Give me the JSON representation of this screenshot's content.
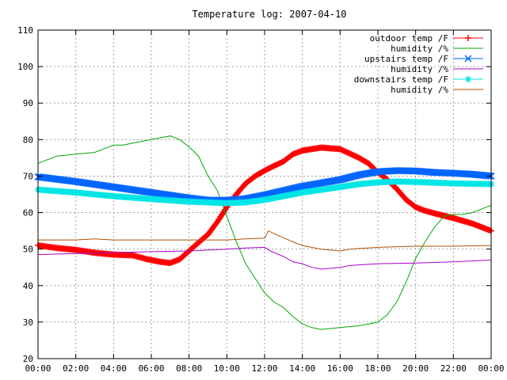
{
  "chart_data": {
    "type": "line",
    "title": "Temperature log: 2007-04-10",
    "xlabel": "",
    "ylabel": "",
    "x_ticks": [
      "00:00",
      "02:00",
      "04:00",
      "06:00",
      "08:00",
      "10:00",
      "12:00",
      "14:00",
      "16:00",
      "18:00",
      "20:00",
      "22:00",
      "00:00"
    ],
    "y_ticks": [
      20,
      30,
      40,
      50,
      60,
      70,
      80,
      90,
      100,
      110
    ],
    "xlim": [
      0,
      24
    ],
    "ylim": [
      20,
      110
    ],
    "grid": true,
    "legend_position": "top-right",
    "series": [
      {
        "name": "outdoor temp /F",
        "color": "#ff0000",
        "marker": "plus",
        "points": [
          [
            0,
            51
          ],
          [
            1,
            50.3
          ],
          [
            2,
            49.8
          ],
          [
            3,
            49
          ],
          [
            4,
            48.5
          ],
          [
            5,
            48.3
          ],
          [
            5.8,
            47.2
          ],
          [
            6.5,
            46.5
          ],
          [
            7,
            46.2
          ],
          [
            7.5,
            47.2
          ],
          [
            8,
            49.5
          ],
          [
            8.5,
            51.8
          ],
          [
            9,
            54
          ],
          [
            9.5,
            57.5
          ],
          [
            10,
            61.5
          ],
          [
            10.5,
            65
          ],
          [
            11,
            68
          ],
          [
            11.5,
            70
          ],
          [
            12,
            71.5
          ],
          [
            12.5,
            72.8
          ],
          [
            13,
            74
          ],
          [
            13.5,
            76
          ],
          [
            14,
            77
          ],
          [
            15,
            77.8
          ],
          [
            16,
            77.4
          ],
          [
            17,
            75
          ],
          [
            17.5,
            73.5
          ],
          [
            18,
            71
          ],
          [
            18.5,
            69
          ],
          [
            19,
            66.5
          ],
          [
            19.5,
            63.5
          ],
          [
            20,
            61.5
          ],
          [
            20.5,
            60.5
          ],
          [
            21,
            59.8
          ],
          [
            22,
            58.5
          ],
          [
            23,
            57
          ],
          [
            24,
            55
          ]
        ]
      },
      {
        "name": "humidity /%",
        "color": "#00aa00",
        "marker": "none",
        "points": [
          [
            0,
            73.5
          ],
          [
            1,
            75.5
          ],
          [
            2,
            76
          ],
          [
            3,
            76.5
          ],
          [
            4,
            78.5
          ],
          [
            4.5,
            78.5
          ],
          [
            5,
            79
          ],
          [
            6,
            80
          ],
          [
            7,
            81
          ],
          [
            7.5,
            80
          ],
          [
            8,
            78
          ],
          [
            8.5,
            75.5
          ],
          [
            9,
            70
          ],
          [
            9.5,
            66
          ],
          [
            10,
            59
          ],
          [
            10.5,
            52
          ],
          [
            11,
            46
          ],
          [
            11.5,
            42
          ],
          [
            12,
            38
          ],
          [
            12.5,
            35.5
          ],
          [
            13,
            34
          ],
          [
            13.5,
            31.5
          ],
          [
            14,
            29.5
          ],
          [
            14.5,
            28.5
          ],
          [
            15,
            28
          ],
          [
            16,
            28.5
          ],
          [
            17,
            29
          ],
          [
            18,
            30
          ],
          [
            18.5,
            32
          ],
          [
            19,
            35.5
          ],
          [
            19.5,
            41
          ],
          [
            20,
            47.5
          ],
          [
            20.5,
            52
          ],
          [
            21,
            56
          ],
          [
            21.5,
            59
          ],
          [
            22,
            59.5
          ],
          [
            22.5,
            59.5
          ],
          [
            23,
            60
          ],
          [
            24,
            62
          ]
        ]
      },
      {
        "name": "upstairs temp /F",
        "color": "#0066ff",
        "marker": "x",
        "points": [
          [
            0,
            69.8
          ],
          [
            2,
            68.5
          ],
          [
            4,
            67
          ],
          [
            6,
            65.5
          ],
          [
            8,
            64
          ],
          [
            9,
            63.4
          ],
          [
            10,
            63.4
          ],
          [
            11,
            63.8
          ],
          [
            12,
            64.8
          ],
          [
            13,
            66
          ],
          [
            14,
            67.2
          ],
          [
            16,
            69
          ],
          [
            17,
            70.3
          ],
          [
            18,
            71.2
          ],
          [
            19,
            71.5
          ],
          [
            20,
            71.4
          ],
          [
            21,
            71
          ],
          [
            22,
            70.8
          ],
          [
            23,
            70.5
          ],
          [
            24,
            70
          ]
        ]
      },
      {
        "name": "humidity /%",
        "color": "#aa00cc",
        "marker": "none",
        "points": [
          [
            0,
            48.5
          ],
          [
            2,
            48.8
          ],
          [
            4,
            49
          ],
          [
            6,
            49.3
          ],
          [
            8,
            49.5
          ],
          [
            10,
            50
          ],
          [
            11,
            50.3
          ],
          [
            12,
            50.5
          ],
          [
            12.3,
            49.5
          ],
          [
            13,
            48
          ],
          [
            13.5,
            46.5
          ],
          [
            14,
            46
          ],
          [
            14.5,
            45
          ],
          [
            15,
            44.5
          ],
          [
            16,
            45
          ],
          [
            16.5,
            45.5
          ],
          [
            18,
            46
          ],
          [
            20,
            46.2
          ],
          [
            22,
            46.5
          ],
          [
            24,
            47
          ]
        ]
      },
      {
        "name": "downstairs temp /F",
        "color": "#00e5e5",
        "marker": "star",
        "points": [
          [
            0,
            66.3
          ],
          [
            2,
            65.5
          ],
          [
            4,
            64.5
          ],
          [
            6,
            63.7
          ],
          [
            8,
            63
          ],
          [
            9,
            62.8
          ],
          [
            10,
            62.6
          ],
          [
            11,
            62.8
          ],
          [
            12,
            63.5
          ],
          [
            13,
            64.5
          ],
          [
            14,
            65.5
          ],
          [
            16,
            67
          ],
          [
            17,
            67.8
          ],
          [
            18,
            68.3
          ],
          [
            19,
            68.5
          ],
          [
            20,
            68.4
          ],
          [
            21,
            68.2
          ],
          [
            22,
            68
          ],
          [
            23,
            67.9
          ],
          [
            24,
            67.8
          ]
        ]
      },
      {
        "name": "humidity /%",
        "color": "#b05000",
        "marker": "none",
        "points": [
          [
            0,
            52.5
          ],
          [
            2,
            52.5
          ],
          [
            3,
            52.8
          ],
          [
            4,
            52.5
          ],
          [
            6,
            52.5
          ],
          [
            8,
            52.5
          ],
          [
            10,
            52.5
          ],
          [
            11,
            52.8
          ],
          [
            12,
            53
          ],
          [
            12.2,
            55
          ],
          [
            12.6,
            54
          ],
          [
            13.5,
            52
          ],
          [
            14,
            51
          ],
          [
            15,
            50
          ],
          [
            16,
            49.5
          ],
          [
            16.5,
            50
          ],
          [
            18,
            50.5
          ],
          [
            20,
            50.8
          ],
          [
            22,
            50.8
          ],
          [
            24,
            51
          ]
        ]
      }
    ]
  }
}
